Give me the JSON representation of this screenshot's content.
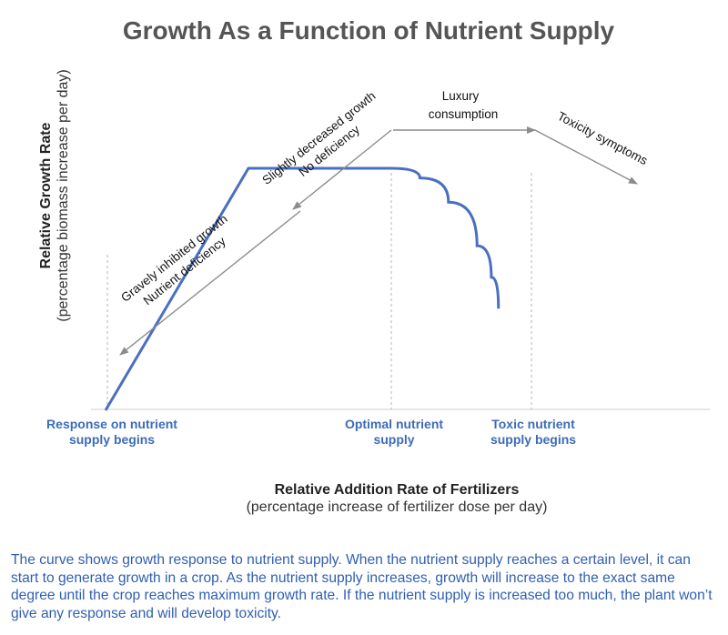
{
  "colors": {
    "curve": "#4a6fc1",
    "tick_text": "#3d6bb8",
    "caption": "#2f5fb0",
    "arrow": "#8c8c8c",
    "axis": "#cfcfcf",
    "title": "#555555"
  },
  "chart_data": {
    "type": "line",
    "title": "Growth As a Function of Nutrient Supply",
    "ylabel": [
      "Relative Growth Rate",
      "(percentage biomass increase per day)"
    ],
    "xlabel": [
      "Relative Addition Rate of Fertilizers",
      "(percentage increase of fertilizer dose per day)"
    ],
    "x_tick_labels": [
      [
        "Response on nutrient",
        "supply begins"
      ],
      [
        "Optimal nutrient",
        "supply"
      ],
      [
        "Toxic nutrient",
        "supply begins"
      ]
    ],
    "annotations": [
      [
        "Gravely inhibited growth",
        "Nutrient deficiency"
      ],
      [
        "Slightly decreased growth",
        "No deficiency"
      ],
      [
        "Luxury",
        "consumption"
      ],
      [
        "Toxicity symptoms"
      ]
    ],
    "series": [
      {
        "x": [
          0,
          1,
          2,
          2.2,
          2.4,
          2.6,
          2.7,
          2.75
        ],
        "y": [
          0,
          1,
          1,
          0.96,
          0.86,
          0.68,
          0.55,
          0.42
        ]
      }
    ],
    "grid": false
  },
  "caption": "The curve shows growth response to nutrient supply. When the nutrient supply reaches a certain level, it can start to generate growth in a crop. As the nutrient supply increases, growth will increase to the exact same degree until the crop reaches maximum growth rate. If the nutrient supply is increased too much, the plant won’t give any response and will develop toxicity."
}
